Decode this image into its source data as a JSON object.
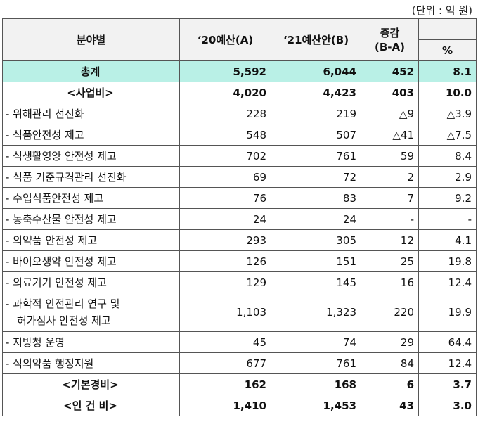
{
  "unit_label": "(단위 : 억 원)",
  "header": {
    "category": "분야별",
    "col_a": "‘20예산(A)",
    "col_b": "‘21예산안(B)",
    "change": "증감\n(B-A)",
    "change_top": "증감",
    "change_bottom": "(B-A)",
    "percent": "%"
  },
  "rows": [
    {
      "label": "총계",
      "a": "5,592",
      "b": "6,044",
      "diff": "452",
      "pct": "8.1"
    },
    {
      "label": "<사업비>",
      "a": "4,020",
      "b": "4,423",
      "diff": "403",
      "pct": "10.0"
    },
    {
      "label": "- 위해관리 선진화",
      "a": "228",
      "b": "219",
      "diff": "△9",
      "pct": "△3.9"
    },
    {
      "label": "- 식품안전성 제고",
      "a": "548",
      "b": "507",
      "diff": "△41",
      "pct": "△7.5"
    },
    {
      "label": "- 식생활영양 안전성 제고",
      "a": "702",
      "b": "761",
      "diff": "59",
      "pct": "8.4"
    },
    {
      "label": "- 식품 기준규격관리 선진화",
      "a": "69",
      "b": "72",
      "diff": "2",
      "pct": "2.9"
    },
    {
      "label": "- 수입식품안전성 제고",
      "a": "76",
      "b": "83",
      "diff": "7",
      "pct": "9.2"
    },
    {
      "label": "- 농축수산물 안전성 제고",
      "a": "24",
      "b": "24",
      "diff": "-",
      "pct": "-"
    },
    {
      "label": "- 의약품 안전성 제고",
      "a": "293",
      "b": "305",
      "diff": "12",
      "pct": "4.1"
    },
    {
      "label": "- 바이오생약 안전성 제고",
      "a": "126",
      "b": "151",
      "diff": "25",
      "pct": "19.8"
    },
    {
      "label": "- 의료기기 안전성 제고",
      "a": "129",
      "b": "145",
      "diff": "16",
      "pct": "12.4"
    },
    {
      "label_line1": "- 과학적 안전관리 연구 및",
      "label_line2": "허가심사 안전성 제고",
      "a": "1,103",
      "b": "1,323",
      "diff": "220",
      "pct": "19.9"
    },
    {
      "label": "- 지방청 운영",
      "a": "45",
      "b": "74",
      "diff": "29",
      "pct": "64.4"
    },
    {
      "label": "- 식의약품 행정지원",
      "a": "677",
      "b": "761",
      "diff": "84",
      "pct": "12.4"
    },
    {
      "label": "<기본경비>",
      "a": "162",
      "b": "168",
      "diff": "6",
      "pct": "3.7"
    },
    {
      "label": "<인 건 비>",
      "a": "1,410",
      "b": "1,453",
      "diff": "43",
      "pct": "3.0"
    }
  ],
  "colors": {
    "total_row_bg": "#b9f0e6",
    "header_bg": "#f2f2f2"
  }
}
